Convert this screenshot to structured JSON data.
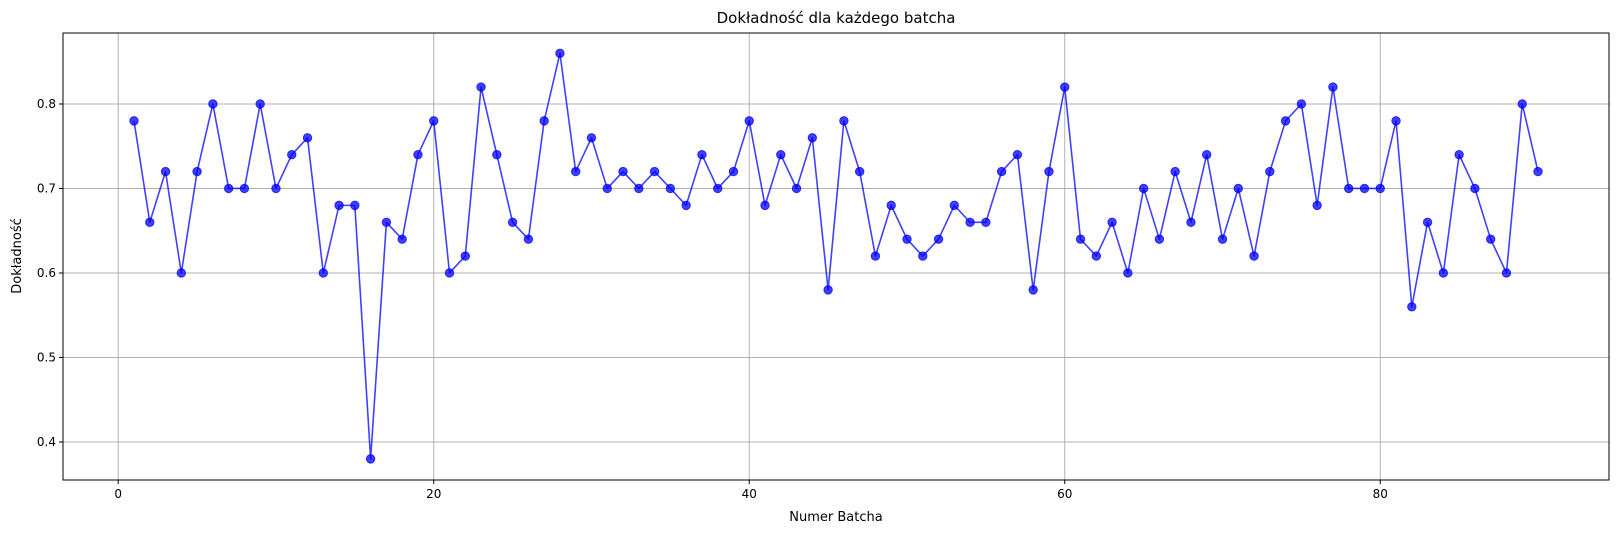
{
  "chart_data": {
    "type": "line",
    "title": "Dokładność dla każdego batcha",
    "xlabel": "Numer Batcha",
    "ylabel": "Dokładność",
    "xlim": [
      -3.5,
      94.5
    ],
    "ylim": [
      0.355,
      0.884
    ],
    "xticks": [
      0,
      20,
      40,
      60,
      80
    ],
    "yticks": [
      0.4,
      0.5,
      0.6,
      0.7,
      0.8
    ],
    "xtick_labels": [
      "0",
      "20",
      "40",
      "60",
      "80"
    ],
    "ytick_labels": [
      "0.4",
      "0.5",
      "0.6",
      "0.7",
      "0.8"
    ],
    "grid": true,
    "line_color": "#0000ff",
    "marker": "circle",
    "x": [
      1,
      2,
      3,
      4,
      5,
      6,
      7,
      8,
      9,
      10,
      11,
      12,
      13,
      14,
      15,
      16,
      17,
      18,
      19,
      20,
      21,
      22,
      23,
      24,
      25,
      26,
      27,
      28,
      29,
      30,
      31,
      32,
      33,
      34,
      35,
      36,
      37,
      38,
      39,
      40,
      41,
      42,
      43,
      44,
      45,
      46,
      47,
      48,
      49,
      50,
      51,
      52,
      53,
      54,
      55,
      56,
      57,
      58,
      59,
      60,
      61,
      62,
      63,
      64,
      65,
      66,
      67,
      68,
      69,
      70,
      71,
      72,
      73,
      74,
      75,
      76,
      77,
      78,
      79,
      80,
      81,
      82,
      83,
      84,
      85,
      86,
      87,
      88,
      89,
      90
    ],
    "y": [
      0.78,
      0.66,
      0.72,
      0.6,
      0.72,
      0.8,
      0.7,
      0.7,
      0.8,
      0.7,
      0.74,
      0.76,
      0.6,
      0.68,
      0.68,
      0.38,
      0.66,
      0.64,
      0.74,
      0.78,
      0.6,
      0.62,
      0.82,
      0.74,
      0.66,
      0.64,
      0.78,
      0.86,
      0.72,
      0.76,
      0.7,
      0.72,
      0.7,
      0.72,
      0.7,
      0.68,
      0.74,
      0.7,
      0.72,
      0.78,
      0.68,
      0.74,
      0.7,
      0.76,
      0.58,
      0.78,
      0.72,
      0.62,
      0.68,
      0.64,
      0.62,
      0.64,
      0.68,
      0.66,
      0.66,
      0.72,
      0.74,
      0.58,
      0.72,
      0.82,
      0.64,
      0.62,
      0.66,
      0.6,
      0.7,
      0.64,
      0.72,
      0.66,
      0.74,
      0.64,
      0.7,
      0.62,
      0.72,
      0.78,
      0.8,
      0.68,
      0.82,
      0.7,
      0.7,
      0.7,
      0.78,
      0.56,
      0.66,
      0.6,
      0.74,
      0.7,
      0.64,
      0.6,
      0.8,
      0.72
    ]
  }
}
